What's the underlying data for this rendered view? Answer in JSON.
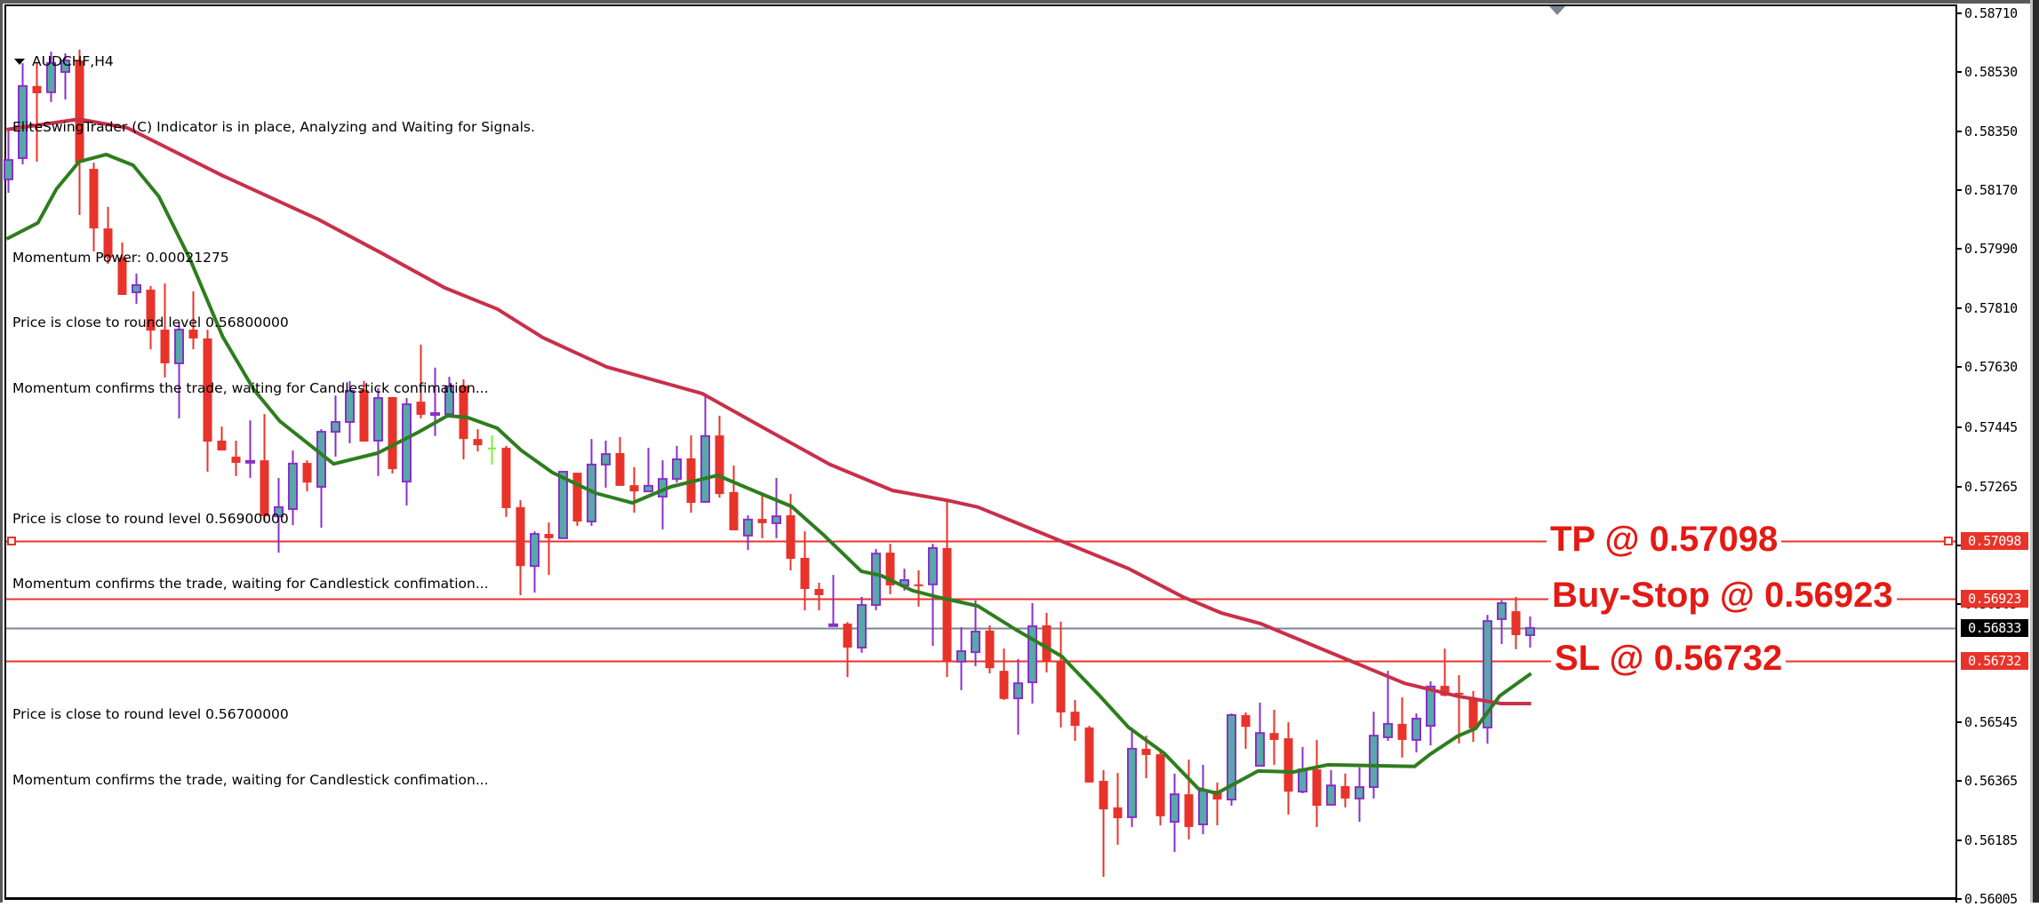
{
  "window": {
    "symbol_timeframe": "AUDCHF,H4"
  },
  "indicator_text": {
    "header": "EliteSwingTrader (C) Indicator is in place, Analyzing and Waiting for Signals.",
    "momentum_power": "Momentum Power: 0.00021275",
    "lines": [
      "Price is close to round level 0.56800000",
      "Momentum confirms the trade, waiting for Candlestick confimation...",
      "Price is close to round level 0.56900000",
      "Momentum confirms the trade, waiting for Candlestick confimation...",
      "Price is close to round level 0.56700000",
      "Momentum confirms the trade, waiting for Candlestick confimation..."
    ]
  },
  "trade_levels": {
    "tp": {
      "label": "TP @ 0.57098",
      "price": 0.57098,
      "tag": "0.57098"
    },
    "buy_stop": {
      "label": "Buy-Stop @ 0.56923",
      "price": 0.56923,
      "tag": "0.56923"
    },
    "current": {
      "price": 0.56833,
      "tag": "0.56833"
    },
    "sl": {
      "label": "SL @ 0.56732",
      "price": 0.56732,
      "tag": "0.56732"
    }
  },
  "colors": {
    "bull_body": "#55aaa8",
    "bull_outline": "#8b2fc9",
    "bear": "#e8332a",
    "doji_green": "#7cf040",
    "ma_slow": "#c8304a",
    "ma_fast": "#2e7d1e",
    "level_line": "#e8332a",
    "current_line": "#7a8594",
    "label_red": "#e41a14",
    "tag_red": "#e8332a",
    "tag_black": "#000000"
  },
  "chart_data": {
    "type": "candlestick",
    "title": "AUDCHF,H4",
    "xlabel": "",
    "ylabel": "",
    "ylim": [
      0.56005,
      0.5871
    ],
    "y_ticks": [
      "0.58710",
      "0.58530",
      "0.58350",
      "0.58170",
      "0.57990",
      "0.57810",
      "0.57630",
      "0.57445",
      "0.57265",
      "0.57085",
      "0.56905",
      "0.56545",
      "0.56365",
      "0.56185",
      "0.56005"
    ],
    "grid": false,
    "candles": [
      [
        0.58203,
        0.58352,
        0.58162,
        0.58262
      ],
      [
        0.58268,
        0.58558,
        0.58249,
        0.58488
      ],
      [
        0.58488,
        0.58558,
        0.58257,
        0.58466
      ],
      [
        0.58469,
        0.58593,
        0.58439,
        0.58558
      ],
      [
        0.58531,
        0.58588,
        0.58447,
        0.58566
      ],
      [
        0.58566,
        0.58599,
        0.58094,
        0.58254
      ],
      [
        0.58235,
        0.58254,
        0.57983,
        0.58053
      ],
      [
        0.58053,
        0.58119,
        0.57945,
        0.57964
      ],
      [
        0.57964,
        0.5801,
        0.5785,
        0.5785
      ],
      [
        0.57858,
        0.57915,
        0.57823,
        0.5788
      ],
      [
        0.57866,
        0.57877,
        0.57684,
        0.57741
      ],
      [
        0.57744,
        0.57885,
        0.57598,
        0.57641
      ],
      [
        0.57641,
        0.57766,
        0.57473,
        0.57744
      ],
      [
        0.57744,
        0.57861,
        0.57684,
        0.57717
      ],
      [
        0.57717,
        0.57744,
        0.5731,
        0.57402
      ],
      [
        0.57405,
        0.57448,
        0.57375,
        0.57375
      ],
      [
        0.57356,
        0.57405,
        0.57297,
        0.57337
      ],
      [
        0.5734,
        0.57467,
        0.57291,
        0.57343
      ],
      [
        0.57345,
        0.57486,
        0.57158,
        0.57174
      ],
      [
        0.57174,
        0.57291,
        0.57063,
        0.57202
      ],
      [
        0.57196,
        0.57375,
        0.57147,
        0.57335
      ],
      [
        0.57337,
        0.57345,
        0.5725,
        0.57277
      ],
      [
        0.57264,
        0.5744,
        0.57139,
        0.57432
      ],
      [
        0.57432,
        0.57543,
        0.57356,
        0.57462
      ],
      [
        0.57462,
        0.57587,
        0.57397,
        0.57557
      ],
      [
        0.5756,
        0.57587,
        0.57402,
        0.57402
      ],
      [
        0.57405,
        0.57565,
        0.57297,
        0.57535
      ],
      [
        0.57538,
        0.57538,
        0.57305,
        0.57318
      ],
      [
        0.5728,
        0.57535,
        0.57207,
        0.57516
      ],
      [
        0.57524,
        0.57698,
        0.57473,
        0.57484
      ],
      [
        0.57486,
        0.57628,
        0.57419,
        0.57489
      ],
      [
        0.57486,
        0.576,
        0.57476,
        0.57571
      ],
      [
        0.57573,
        0.57592,
        0.57348,
        0.5741
      ],
      [
        0.5741,
        0.5744,
        0.57372,
        0.57391
      ],
      [
        0.57381,
        0.57421,
        0.57332,
        0.57381
      ],
      [
        0.57383,
        0.57389,
        0.57172,
        0.57199
      ],
      [
        0.57202,
        0.57223,
        0.56933,
        0.57022
      ],
      [
        0.57022,
        0.57128,
        0.56941,
        0.5712
      ],
      [
        0.5712,
        0.57155,
        0.56995,
        0.57107
      ],
      [
        0.57107,
        0.5731,
        0.57107,
        0.5731
      ],
      [
        0.57307,
        0.57307,
        0.57145,
        0.57158
      ],
      [
        0.57158,
        0.5741,
        0.57145,
        0.57332
      ],
      [
        0.57332,
        0.57405,
        0.57261,
        0.57364
      ],
      [
        0.57367,
        0.57416,
        0.57267,
        0.57267
      ],
      [
        0.57269,
        0.57324,
        0.57185,
        0.5725
      ],
      [
        0.5725,
        0.57383,
        0.5725,
        0.57267
      ],
      [
        0.57234,
        0.57345,
        0.57134,
        0.57288
      ],
      [
        0.57288,
        0.57389,
        0.57277,
        0.57348
      ],
      [
        0.57351,
        0.57421,
        0.57185,
        0.57215
      ],
      [
        0.57218,
        0.57541,
        0.57218,
        0.57419
      ],
      [
        0.57421,
        0.57481,
        0.57231,
        0.57242
      ],
      [
        0.57248,
        0.57329,
        0.57131,
        0.57131
      ],
      [
        0.57115,
        0.57177,
        0.57071,
        0.57164
      ],
      [
        0.57166,
        0.57245,
        0.57107,
        0.57153
      ],
      [
        0.57153,
        0.57291,
        0.57107,
        0.57174
      ],
      [
        0.57177,
        0.57242,
        0.57009,
        0.57044
      ],
      [
        0.57047,
        0.57128,
        0.56887,
        0.56952
      ],
      [
        0.56952,
        0.56971,
        0.56887,
        0.56933
      ],
      [
        0.56843,
        0.56995,
        0.56838,
        0.56844
      ],
      [
        0.56846,
        0.56851,
        0.56683,
        0.56773
      ],
      [
        0.56773,
        0.56928,
        0.56757,
        0.56903
      ],
      [
        0.56903,
        0.57074,
        0.56887,
        0.5706
      ],
      [
        0.57063,
        0.5709,
        0.56936,
        0.56963
      ],
      [
        0.56963,
        0.57014,
        0.56947,
        0.56979
      ],
      [
        0.56966,
        0.57009,
        0.56898,
        0.56965
      ],
      [
        0.56966,
        0.5709,
        0.56778,
        0.57077
      ],
      [
        0.57077,
        0.57223,
        0.56683,
        0.5673
      ],
      [
        0.5673,
        0.56835,
        0.56643,
        0.56762
      ],
      [
        0.56759,
        0.56917,
        0.56716,
        0.56822
      ],
      [
        0.56825,
        0.56841,
        0.56694,
        0.5671
      ],
      [
        0.56702,
        0.5677,
        0.56613,
        0.56616
      ],
      [
        0.56618,
        0.56738,
        0.56507,
        0.56664
      ],
      [
        0.56667,
        0.56909,
        0.56602,
        0.56838
      ],
      [
        0.56841,
        0.56879,
        0.56697,
        0.56732
      ],
      [
        0.56732,
        0.56852,
        0.56529,
        0.56575
      ],
      [
        0.56577,
        0.56613,
        0.56488,
        0.56534
      ],
      [
        0.56529,
        0.56534,
        0.56361,
        0.56361
      ],
      [
        0.56366,
        0.56399,
        0.56073,
        0.56279
      ],
      [
        0.56285,
        0.5639,
        0.56171,
        0.56252
      ],
      [
        0.56255,
        0.56529,
        0.56225,
        0.56464
      ],
      [
        0.56464,
        0.56504,
        0.56374,
        0.56445
      ],
      [
        0.56447,
        0.56461,
        0.5623,
        0.56258
      ],
      [
        0.56241,
        0.56388,
        0.56149,
        0.56325
      ],
      [
        0.56325,
        0.56431,
        0.56187,
        0.56225
      ],
      [
        0.56233,
        0.56415,
        0.56203,
        0.56336
      ],
      [
        0.56336,
        0.56361,
        0.5623,
        0.56309
      ],
      [
        0.56309,
        0.56572,
        0.5629,
        0.56567
      ],
      [
        0.56567,
        0.56575,
        0.56464,
        0.56531
      ],
      [
        0.56412,
        0.56605,
        0.56412,
        0.56512
      ],
      [
        0.56512,
        0.56583,
        0.56415,
        0.56491
      ],
      [
        0.56496,
        0.56545,
        0.56263,
        0.56333
      ],
      [
        0.56333,
        0.56469,
        0.56328,
        0.56401
      ],
      [
        0.56401,
        0.56491,
        0.56225,
        0.5629
      ],
      [
        0.56293,
        0.56399,
        0.56293,
        0.56352
      ],
      [
        0.5635,
        0.56388,
        0.56285,
        0.56312
      ],
      [
        0.56312,
        0.56407,
        0.56241,
        0.56347
      ],
      [
        0.56347,
        0.56577,
        0.56312,
        0.56504
      ],
      [
        0.56499,
        0.56702,
        0.56488,
        0.5654
      ],
      [
        0.5654,
        0.56621,
        0.56437,
        0.56491
      ],
      [
        0.56491,
        0.56572,
        0.56453,
        0.56556
      ],
      [
        0.56534,
        0.5667,
        0.56474,
        0.56654
      ],
      [
        0.56656,
        0.5677,
        0.56624,
        0.56626
      ],
      [
        0.56635,
        0.56689,
        0.5648,
        0.56632
      ],
      [
        0.56613,
        0.5664,
        0.56485,
        0.56526
      ],
      [
        0.56529,
        0.56873,
        0.5648,
        0.56854
      ],
      [
        0.5686,
        0.56917,
        0.56784,
        0.56909
      ],
      [
        0.56884,
        0.56928,
        0.56768,
        0.56811
      ],
      [
        0.56811,
        0.56868,
        0.56773,
        0.56833
      ]
    ],
    "candle_format": [
      "open",
      "high",
      "low",
      "close"
    ],
    "special_candles": {
      "34": "green-cross-doji"
    },
    "series": [
      {
        "name": "slow MA",
        "color": "#c8304a",
        "points": [
          [
            -0.1,
            0.58355
          ],
          [
            5,
            0.58387
          ],
          [
            8.4,
            0.5836
          ],
          [
            15.1,
            0.58214
          ],
          [
            21.8,
            0.58081
          ],
          [
            26.3,
            0.57977
          ],
          [
            30.7,
            0.57872
          ],
          [
            34.4,
            0.57807
          ],
          [
            37.6,
            0.5772
          ],
          [
            42.1,
            0.5763
          ],
          [
            48.8,
            0.57549
          ],
          [
            53.3,
            0.5744
          ],
          [
            57.8,
            0.57332
          ],
          [
            62.2,
            0.57253
          ],
          [
            66,
            0.57223
          ],
          [
            68.2,
            0.57202
          ],
          [
            78.8,
            0.57014
          ],
          [
            82.6,
            0.56928
          ],
          [
            85.3,
            0.56879
          ],
          [
            88.1,
            0.56846
          ],
          [
            93.8,
            0.56743
          ],
          [
            98.2,
            0.56664
          ],
          [
            102,
            0.56624
          ],
          [
            105,
            0.56602
          ],
          [
            107.1,
            0.56602
          ]
        ]
      },
      {
        "name": "fast MA",
        "color": "#2e7d1e",
        "points": [
          [
            -0.1,
            0.58021
          ],
          [
            2.1,
            0.5807
          ],
          [
            3.4,
            0.58173
          ],
          [
            5,
            0.58257
          ],
          [
            6.9,
            0.58279
          ],
          [
            8.8,
            0.58246
          ],
          [
            10.6,
            0.58151
          ],
          [
            12.8,
            0.57959
          ],
          [
            15.1,
            0.57722
          ],
          [
            17.3,
            0.5756
          ],
          [
            19.1,
            0.57465
          ],
          [
            22.9,
            0.57334
          ],
          [
            26,
            0.57367
          ],
          [
            28.9,
            0.57432
          ],
          [
            30.9,
            0.57481
          ],
          [
            32.3,
            0.57476
          ],
          [
            34.4,
            0.57443
          ],
          [
            36.1,
            0.57375
          ],
          [
            38.3,
            0.57307
          ],
          [
            41.3,
            0.57245
          ],
          [
            43.9,
            0.57215
          ],
          [
            46.6,
            0.57264
          ],
          [
            49.9,
            0.57299
          ],
          [
            52.4,
            0.57253
          ],
          [
            55.1,
            0.57204
          ],
          [
            57.4,
            0.57115
          ],
          [
            60,
            0.57006
          ],
          [
            61.4,
            0.56993
          ],
          [
            63.6,
            0.56947
          ],
          [
            65.6,
            0.56925
          ],
          [
            68.2,
            0.569
          ],
          [
            70.9,
            0.56827
          ],
          [
            74.1,
            0.56746
          ],
          [
            76.8,
            0.56624
          ],
          [
            78.8,
            0.56529
          ],
          [
            81.3,
            0.5645
          ],
          [
            83.7,
            0.56342
          ],
          [
            85,
            0.56328
          ],
          [
            87.9,
            0.56396
          ],
          [
            90.4,
            0.56393
          ],
          [
            92.8,
            0.56415
          ],
          [
            98.9,
            0.5641
          ],
          [
            100,
            0.56447
          ],
          [
            101.9,
            0.56502
          ],
          [
            103.2,
            0.56526
          ],
          [
            104.9,
            0.56626
          ],
          [
            107.1,
            0.56694
          ]
        ]
      }
    ],
    "horizontal_lines": [
      {
        "name": "TP",
        "price": 0.57098
      },
      {
        "name": "Buy-Stop",
        "price": 0.56923
      },
      {
        "name": "Bid",
        "price": 0.56833
      },
      {
        "name": "SL",
        "price": 0.56732
      }
    ],
    "annotations": [
      "TP @ 0.57098",
      "Buy-Stop @ 0.56923",
      "SL @ 0.56732"
    ]
  }
}
